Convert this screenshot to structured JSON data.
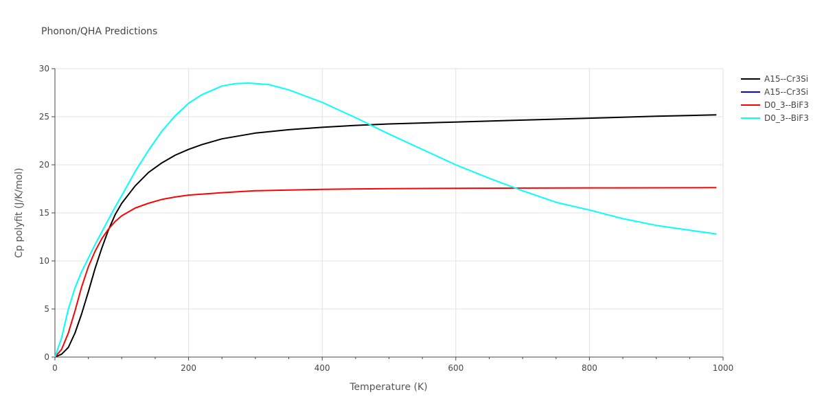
{
  "chart_data": {
    "type": "line",
    "title": "Phonon/QHA Predictions",
    "xlabel": "Temperature (K)",
    "ylabel": "Cp polyfit (J/K/mol)",
    "xlim": [
      0,
      1000
    ],
    "ylim": [
      0,
      30
    ],
    "x_ticks": [
      0,
      200,
      400,
      600,
      800,
      1000
    ],
    "y_ticks": [
      0,
      5,
      10,
      15,
      20,
      25,
      30
    ],
    "grid": true,
    "legend_position": "top-right",
    "series": [
      {
        "name": "A15--Cr3Si",
        "color": "#000000",
        "x": [
          0,
          10,
          20,
          30,
          40,
          50,
          60,
          70,
          80,
          90,
          100,
          120,
          140,
          160,
          180,
          200,
          220,
          250,
          300,
          350,
          400,
          450,
          500,
          600,
          700,
          800,
          900,
          990
        ],
        "y": [
          0,
          0.3,
          1.0,
          2.5,
          4.5,
          6.8,
          9.2,
          11.3,
          13.2,
          14.8,
          16.0,
          17.8,
          19.2,
          20.2,
          21.0,
          21.6,
          22.1,
          22.7,
          23.3,
          23.65,
          23.9,
          24.1,
          24.25,
          24.45,
          24.65,
          24.85,
          25.05,
          25.2
        ]
      },
      {
        "name": "A15--Cr3Si",
        "color": "#0000ff",
        "x": [],
        "y": []
      },
      {
        "name": "D0_3--BiF3",
        "color": "#ff0000",
        "x": [
          0,
          10,
          20,
          30,
          40,
          50,
          60,
          70,
          80,
          90,
          100,
          120,
          140,
          160,
          180,
          200,
          250,
          300,
          400,
          500,
          600,
          700,
          800,
          900,
          990
        ],
        "y": [
          0,
          0.8,
          2.5,
          4.8,
          7.3,
          9.4,
          11.0,
          12.3,
          13.3,
          14.1,
          14.7,
          15.5,
          16.0,
          16.4,
          16.65,
          16.85,
          17.1,
          17.3,
          17.45,
          17.52,
          17.56,
          17.58,
          17.6,
          17.61,
          17.62
        ]
      },
      {
        "name": "D0_3--BiF3",
        "color": "#00ffff",
        "x": [
          0,
          10,
          20,
          30,
          40,
          50,
          60,
          70,
          80,
          90,
          100,
          120,
          140,
          160,
          180,
          200,
          220,
          250,
          270,
          290,
          320,
          350,
          400,
          450,
          500,
          550,
          600,
          650,
          700,
          750,
          800,
          850,
          900,
          950,
          990
        ],
        "y": [
          0,
          2.0,
          5.0,
          7.2,
          8.9,
          10.3,
          11.7,
          13.0,
          14.3,
          15.6,
          16.8,
          19.3,
          21.5,
          23.5,
          25.1,
          26.4,
          27.3,
          28.2,
          28.45,
          28.5,
          28.35,
          27.8,
          26.5,
          24.9,
          23.2,
          21.6,
          20.0,
          18.6,
          17.3,
          16.1,
          15.3,
          14.4,
          13.7,
          13.2,
          12.8
        ]
      }
    ]
  }
}
